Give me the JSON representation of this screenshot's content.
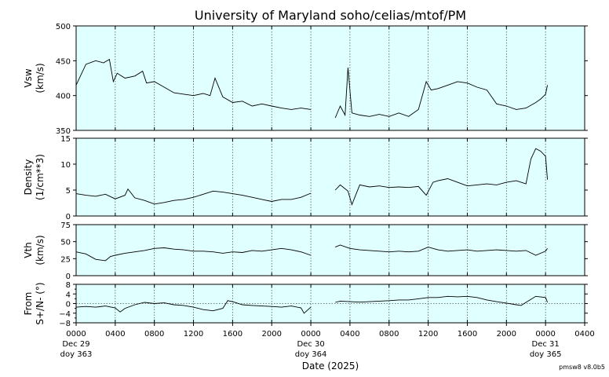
{
  "title": "University of Maryland  soho/celias/mtof/PM",
  "xlabel": "Date (2025)",
  "version": "pmsw8 v8.0b5",
  "colors": {
    "panel_bg": "#e0ffff",
    "trace": "#000000",
    "grid": "#555555"
  },
  "x_ticks": [
    {
      "hour": 0,
      "label": "0000",
      "sub": [
        "Dec 29",
        "doy 363"
      ]
    },
    {
      "hour": 4,
      "label": "0400"
    },
    {
      "hour": 8,
      "label": "0800"
    },
    {
      "hour": 12,
      "label": "1200"
    },
    {
      "hour": 16,
      "label": "1600"
    },
    {
      "hour": 20,
      "label": "2000"
    },
    {
      "hour": 24,
      "label": "0000",
      "sub": [
        "Dec 30",
        "doy 364"
      ]
    },
    {
      "hour": 28,
      "label": "0400"
    },
    {
      "hour": 32,
      "label": "0800"
    },
    {
      "hour": 36,
      "label": "1200"
    },
    {
      "hour": 40,
      "label": "1600"
    },
    {
      "hour": 44,
      "label": "2000"
    },
    {
      "hour": 48,
      "label": "0000",
      "sub": [
        "Dec 31",
        "doy 365"
      ]
    },
    {
      "hour": 52,
      "label": "0400"
    }
  ],
  "chart_data": [
    {
      "type": "line",
      "ylabel": [
        "Vsw",
        "(km/s)"
      ],
      "ylim": [
        350,
        500
      ],
      "yticks": [
        350,
        400,
        450,
        500
      ],
      "x_unit": "hours since 2025-12-29 00:00",
      "xlim": [
        0,
        52
      ],
      "series": [
        {
          "x": [
            0,
            1,
            2,
            2.8,
            3.4,
            3.8,
            4.2,
            5,
            6,
            6.8,
            7.2,
            8,
            9,
            10,
            11,
            12,
            13,
            13.7,
            14.2,
            15,
            16,
            17,
            18,
            19,
            20,
            21,
            22,
            23,
            24,
            26.5,
            27,
            27.5,
            27.8,
            28.2,
            29,
            30,
            31,
            32,
            33,
            34,
            35,
            35.8,
            36.3,
            37,
            38,
            39,
            40,
            41,
            42,
            43,
            44,
            45,
            46,
            47,
            47.5,
            48,
            48.2
          ],
          "y": [
            415,
            445,
            450,
            447,
            452,
            420,
            432,
            425,
            428,
            435,
            418,
            420,
            412,
            404,
            402,
            400,
            403,
            400,
            425,
            398,
            390,
            392,
            385,
            388,
            385,
            382,
            380,
            382,
            380,
            368,
            385,
            372,
            440,
            375,
            372,
            370,
            373,
            370,
            375,
            370,
            380,
            420,
            408,
            410,
            415,
            420,
            418,
            412,
            408,
            388,
            385,
            380,
            382,
            390,
            395,
            402,
            415
          ]
        }
      ]
    },
    {
      "type": "line",
      "ylabel": [
        "Density",
        "(1/cm**3)"
      ],
      "ylim": [
        0,
        15
      ],
      "yticks": [
        0,
        5,
        10,
        15
      ],
      "x_unit": "hours since 2025-12-29 00:00",
      "xlim": [
        0,
        52
      ],
      "series": [
        {
          "x": [
            0,
            1,
            2,
            3,
            4,
            5,
            5.3,
            6,
            7,
            8,
            9,
            10,
            11,
            12,
            13,
            14,
            15,
            16,
            17,
            18,
            19,
            20,
            21,
            22,
            23,
            24,
            26.5,
            27,
            27.8,
            28.2,
            29,
            30,
            31,
            32,
            33,
            34,
            35,
            35.8,
            36.5,
            37,
            38,
            39,
            40,
            41,
            42,
            43,
            44,
            45,
            46,
            46.5,
            47,
            47.5,
            48,
            48.2
          ],
          "y": [
            4.3,
            4.0,
            3.8,
            4.2,
            3.3,
            4.0,
            5.2,
            3.5,
            3.0,
            2.3,
            2.6,
            3.0,
            3.2,
            3.6,
            4.2,
            4.8,
            4.6,
            4.3,
            4.0,
            3.6,
            3.2,
            2.8,
            3.2,
            3.2,
            3.6,
            4.4,
            5.0,
            6.0,
            4.8,
            2.2,
            6.0,
            5.6,
            5.8,
            5.5,
            5.6,
            5.5,
            5.7,
            4.0,
            6.5,
            6.8,
            7.2,
            6.5,
            5.8,
            6.0,
            6.2,
            6.0,
            6.5,
            6.8,
            6.2,
            11.0,
            13.0,
            12.5,
            11.5,
            7.0
          ]
        }
      ]
    },
    {
      "type": "line",
      "ylabel": [
        "Vth",
        "(km/s)"
      ],
      "ylim": [
        0,
        75
      ],
      "yticks": [
        0,
        25,
        50,
        75
      ],
      "x_unit": "hours since 2025-12-29 00:00",
      "xlim": [
        0,
        52
      ],
      "series": [
        {
          "x": [
            0,
            1,
            2,
            3,
            3.5,
            4,
            5,
            6,
            7,
            8,
            9,
            10,
            11,
            12,
            13,
            14,
            15,
            16,
            17,
            18,
            19,
            20,
            21,
            22,
            23,
            24,
            26.5,
            27,
            28,
            29,
            30,
            31,
            32,
            33,
            34,
            35,
            36,
            37,
            38,
            39,
            40,
            41,
            42,
            43,
            44,
            45,
            46,
            47,
            48,
            48.2
          ],
          "y": [
            35,
            32,
            24,
            22,
            28,
            30,
            33,
            35,
            37,
            40,
            41,
            39,
            38,
            36,
            36,
            35,
            33,
            35,
            34,
            37,
            36,
            38,
            40,
            38,
            35,
            30,
            42,
            45,
            40,
            38,
            37,
            36,
            35,
            36,
            35,
            36,
            42,
            38,
            36,
            37,
            38,
            36,
            37,
            38,
            37,
            36,
            37,
            30,
            36,
            40
          ]
        }
      ]
    },
    {
      "type": "line",
      "ylabel": [
        "From",
        "S+/N- (°)"
      ],
      "ylim": [
        -8,
        8
      ],
      "yticks": [
        -8,
        -4,
        0,
        4,
        8
      ],
      "ytick_labels": [
        "−8",
        "−4",
        "0",
        "4",
        "8"
      ],
      "x_unit": "hours since 2025-12-29 00:00",
      "xlim": [
        0,
        52
      ],
      "series": [
        {
          "x": [
            0,
            1,
            2,
            3,
            4,
            4.5,
            5,
            6,
            7,
            8,
            9,
            10,
            11,
            12,
            13,
            14,
            15,
            15.5,
            16,
            17,
            18,
            19,
            20,
            21,
            22,
            23,
            23.3,
            24,
            26.5,
            27,
            28,
            29,
            30,
            31,
            32,
            33,
            34,
            35,
            36,
            37,
            38,
            39,
            40,
            41,
            42,
            43,
            44,
            45,
            45.5,
            46,
            47,
            48,
            48.2
          ],
          "y": [
            -1.5,
            -1.2,
            -1.5,
            -1.0,
            -1.8,
            -3.5,
            -2.0,
            -0.5,
            0.5,
            0.0,
            0.3,
            -0.5,
            -0.8,
            -1.5,
            -2.5,
            -3.0,
            -2.0,
            1.2,
            0.8,
            -0.5,
            -0.8,
            -1.0,
            -1.2,
            -1.5,
            -1.0,
            -1.8,
            -4.0,
            -1.5,
            0.5,
            1.0,
            0.8,
            0.6,
            0.8,
            1.0,
            1.2,
            1.5,
            1.5,
            2.0,
            2.5,
            2.5,
            3.0,
            2.8,
            3.0,
            2.5,
            1.5,
            0.8,
            0.2,
            -0.5,
            -0.8,
            0.5,
            3.0,
            2.5,
            0.5
          ]
        }
      ]
    }
  ]
}
